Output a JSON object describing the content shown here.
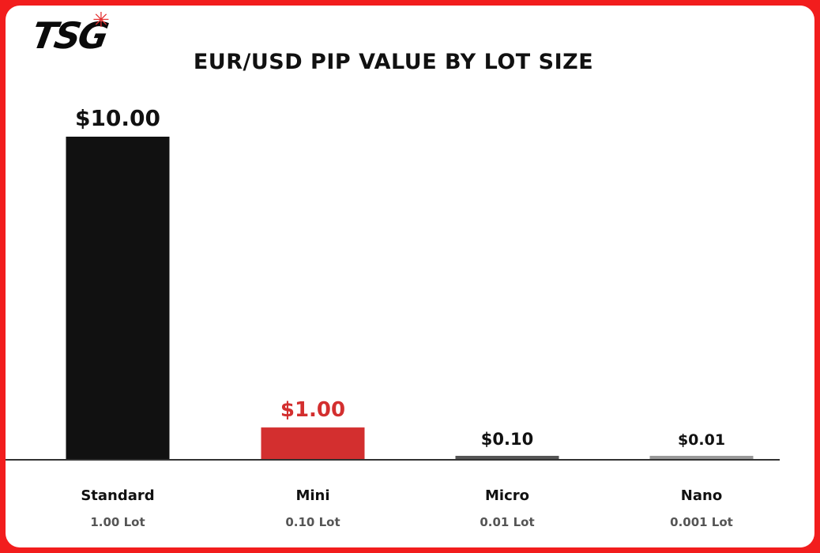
{
  "logo": {
    "text": "TSG",
    "star": "✳"
  },
  "chart_data": {
    "type": "bar",
    "title": "EUR/USD PIP VALUE BY LOT SIZE",
    "xlabel": "",
    "ylabel": "",
    "grid": false,
    "categories": [
      "Standard",
      "Mini",
      "Micro",
      "Nano"
    ],
    "sublabels": [
      "1.00 Lot",
      "0.10 Lot",
      "0.01 Lot",
      "0.001 Lot"
    ],
    "values": [
      10.0,
      1.0,
      0.1,
      0.01
    ],
    "value_labels": [
      "$10.00",
      "$1.00",
      "$0.10",
      "$0.01"
    ],
    "colors": [
      "#111111",
      "#d32f2f",
      "#555555",
      "#999999"
    ],
    "label_colors": [
      "#111111",
      "#d32f2f",
      "#111111",
      "#111111"
    ]
  }
}
